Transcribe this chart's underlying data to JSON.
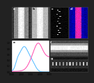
{
  "overall_bg": "#222222",
  "panel_border_color": "#444444",
  "spectrum_line_blue": "#4db8ff",
  "spectrum_line_pink": "#ff44aa",
  "spectrum_bg": "#ffffff",
  "top_panels": [
    {
      "label": "a",
      "label_color": "white",
      "type": "bright_field"
    },
    {
      "label": "b",
      "label_color": "white",
      "type": "medium_field"
    },
    {
      "label": "c",
      "label_color": "white",
      "type": "dark_haadf"
    },
    {
      "label": "d",
      "label_color": "white",
      "type": "color_map"
    }
  ],
  "bottom_left_label": "e",
  "bottom_strip1_label": "f",
  "bottom_strip2_label": "g",
  "spectrum_xlim": [
    1000,
    5000
  ],
  "spectrum_ylim": [
    0,
    1.1
  ]
}
